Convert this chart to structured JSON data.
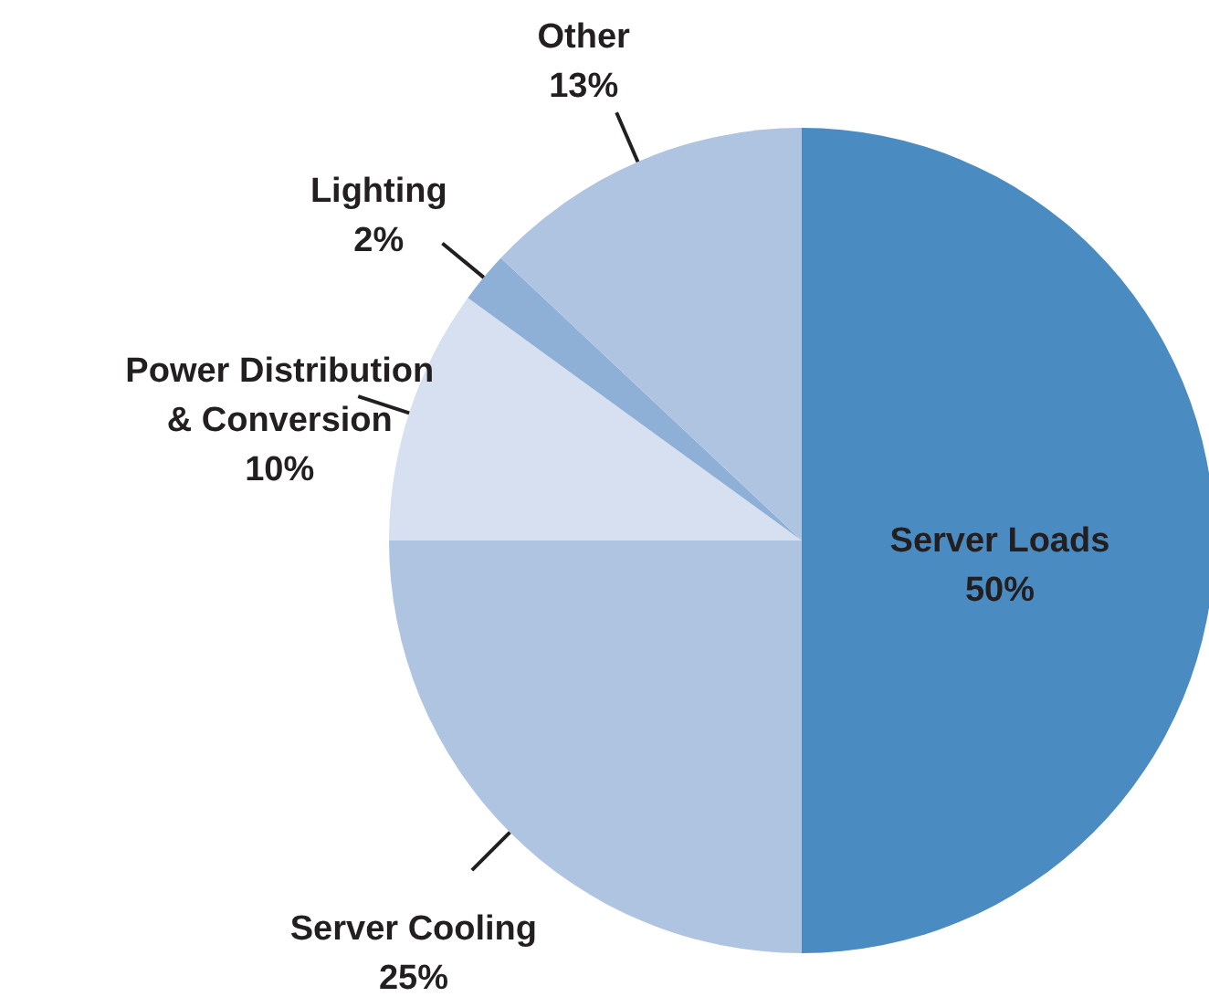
{
  "chart_data": {
    "type": "pie",
    "categories": [
      "Server Loads",
      "Server Cooling",
      "Power Distribution & Conversion",
      "Lighting",
      "Other"
    ],
    "values": [
      50,
      25,
      10,
      2,
      13
    ],
    "value_labels": [
      "50%",
      "25%",
      "10%",
      "2%",
      "13%"
    ],
    "colors": [
      "#4a8bc2",
      "#afc4e1",
      "#d6e0f0",
      "#8eb0d6",
      "#afc4e1"
    ]
  }
}
